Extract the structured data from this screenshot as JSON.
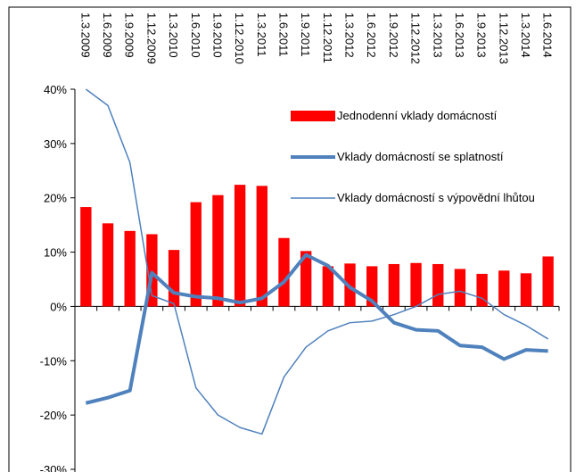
{
  "chart_data": {
    "type": "bar_line",
    "categories": [
      "1.3.2009",
      "1.6.2009",
      "1.9.2009",
      "1.12.2009",
      "1.3.2010",
      "1.6.2010",
      "1.9.2010",
      "1.12.2010",
      "1.3.2011",
      "1.6.2011",
      "1.9.2011",
      "1.12.2011",
      "1.3.2012",
      "1.6.2012",
      "1.9.2012",
      "1.12.2012",
      "1.3.2013",
      "1.6.2013",
      "1.9.2013",
      "1.12.2013",
      "1.3.2014",
      "1.6.2014"
    ],
    "series": [
      {
        "name": "Jednodenní vklady domácností",
        "type": "bar",
        "color": "#ff0000",
        "values": [
          18.3,
          15.3,
          13.9,
          13.3,
          10.4,
          19.2,
          20.5,
          22.4,
          22.2,
          12.6,
          10.2,
          7.4,
          7.9,
          7.4,
          7.8,
          8.0,
          7.8,
          6.9,
          6.0,
          6.6,
          6.1,
          9.2
        ]
      },
      {
        "name": "Vklady domácností se splatností",
        "type": "line",
        "color": "#4f81bd",
        "width": 4,
        "values": [
          -17.8,
          -16.8,
          -15.5,
          6.2,
          2.5,
          1.8,
          1.5,
          0.7,
          1.5,
          4.5,
          9.5,
          7.5,
          3.5,
          1.0,
          -3.0,
          -4.3,
          -4.5,
          -7.2,
          -7.5,
          -9.7,
          -8.0,
          -8.2
        ]
      },
      {
        "name": "Vklady domácností s výpovědní lhůtou",
        "type": "line",
        "color": "#4f81bd",
        "width": 1.5,
        "values": [
          40.0,
          37.0,
          26.5,
          2.0,
          0.5,
          -15.0,
          -20.0,
          -22.3,
          -23.5,
          -13.0,
          -7.5,
          -4.5,
          -3.0,
          -2.7,
          -1.5,
          0.0,
          2.2,
          2.8,
          1.5,
          -1.5,
          -3.5,
          -6.0
        ]
      }
    ],
    "ylim": [
      -30,
      40
    ],
    "yticks": [
      {
        "value": -30,
        "label": "-30%"
      },
      {
        "value": -20,
        "label": "-20%"
      },
      {
        "value": -10,
        "label": "-10%"
      },
      {
        "value": 0,
        "label": "0%"
      },
      {
        "value": 10,
        "label": "10%"
      },
      {
        "value": 20,
        "label": "20%"
      },
      {
        "value": 30,
        "label": "30%"
      },
      {
        "value": 40,
        "label": "40%"
      }
    ]
  }
}
